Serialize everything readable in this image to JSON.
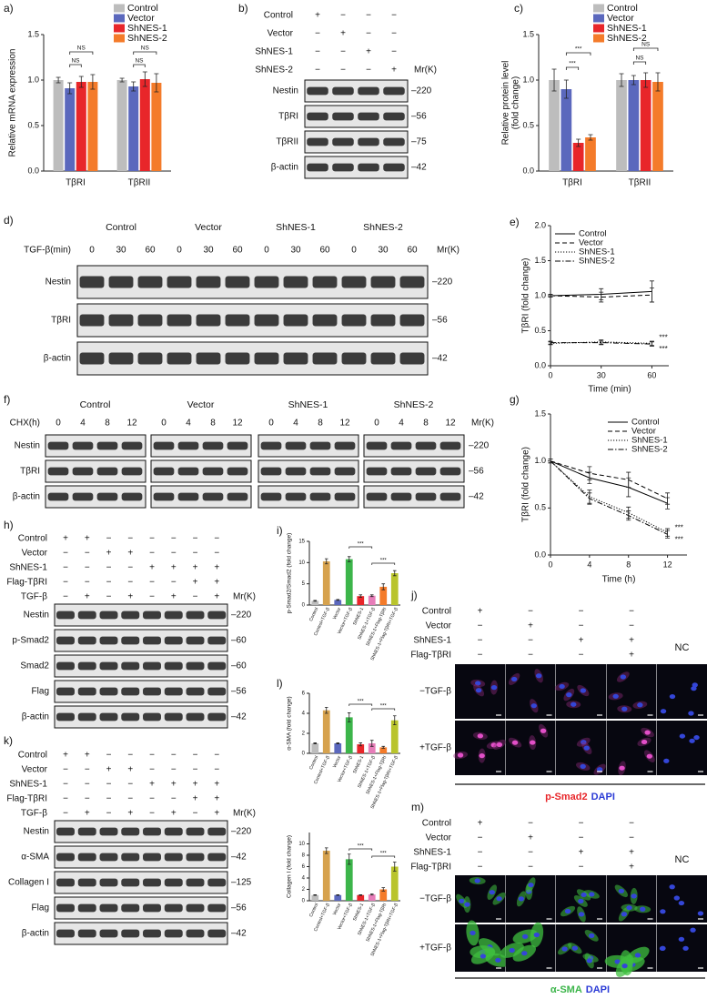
{
  "chart_data": [
    {
      "type": "bar",
      "panel": "a)",
      "ylabel": "Relative mRNA expression",
      "categories": [
        "TβRI",
        "TβRII"
      ],
      "series": [
        {
          "name": "Control",
          "color": "#bdbdbd",
          "values": [
            1.0,
            1.0
          ],
          "errors": [
            0.03,
            0.02
          ]
        },
        {
          "name": "Vector",
          "color": "#5b68bd",
          "values": [
            0.91,
            0.93
          ],
          "errors": [
            0.06,
            0.05
          ]
        },
        {
          "name": "ShNES-1",
          "color": "#e8262a",
          "values": [
            0.98,
            1.01
          ],
          "errors": [
            0.06,
            0.08
          ]
        },
        {
          "name": "ShNES-2",
          "color": "#f47b2a",
          "values": [
            0.98,
            0.97
          ],
          "errors": [
            0.08,
            0.1
          ]
        }
      ],
      "ylim": [
        0,
        1.5
      ],
      "yticks": [
        {
          "value": 0,
          "label": "0.0"
        },
        0.5,
        {
          "value": 1,
          "label": "1.0"
        },
        1.5
      ],
      "annotations": [
        "NS",
        "NS",
        "NS",
        "NS"
      ]
    },
    {
      "type": "bar",
      "panel": "c)",
      "ylabel": [
        "Relative protein level",
        "(fold change)"
      ],
      "categories": [
        "TβRI",
        "TβRII"
      ],
      "series": [
        {
          "name": "Control",
          "color": "#bdbdbd",
          "values": [
            1.0,
            1.0
          ],
          "errors": [
            0.12,
            0.07
          ]
        },
        {
          "name": "Vector",
          "color": "#5b68bd",
          "values": [
            0.9,
            1.0
          ],
          "errors": [
            0.1,
            0.05
          ]
        },
        {
          "name": "ShNES-1",
          "color": "#e8262a",
          "values": [
            0.31,
            1.0
          ],
          "errors": [
            0.04,
            0.08
          ]
        },
        {
          "name": "ShNES-2",
          "color": "#f47b2a",
          "values": [
            0.37,
            0.98
          ],
          "errors": [
            0.03,
            0.1
          ]
        }
      ],
      "ylim": [
        0,
        1.5
      ],
      "yticks": [
        {
          "value": 0,
          "label": "0.0"
        },
        0.5,
        {
          "value": 1,
          "label": "1.0"
        },
        1.5
      ],
      "annotations": [
        "***",
        "***",
        "NS",
        "NS"
      ]
    },
    {
      "type": "line",
      "panel": "e)",
      "xlabel": "Time (min)",
      "ylabel": "TβRI (fold change)",
      "x": [
        0,
        30,
        60
      ],
      "xlim": [
        0,
        70
      ],
      "xticks": [
        0,
        30,
        60
      ],
      "ylim": [
        0,
        2
      ],
      "yticks": [
        {
          "value": 0,
          "label": "0.0"
        },
        0.5,
        {
          "value": 1,
          "label": "1.0"
        },
        1.5,
        {
          "value": 2,
          "label": "2.0"
        }
      ],
      "series": [
        {
          "name": "Control",
          "color": "#000000",
          "linestyle": "solid",
          "values": [
            1.0,
            1.02,
            1.06
          ],
          "errors": [
            0.02,
            0.08,
            0.15
          ]
        },
        {
          "name": "Vector",
          "color": "#000000",
          "linestyle": "dashed",
          "values": [
            1.0,
            0.98,
            1.01
          ],
          "errors": [
            0.02,
            0.07,
            0.1
          ]
        },
        {
          "name": "ShNES-1",
          "color": "#000000",
          "linestyle": "dotted",
          "values": [
            0.32,
            0.34,
            0.32
          ],
          "errors": [
            0.02,
            0.03,
            0.03
          ]
        },
        {
          "name": "ShNES-2",
          "color": "#000000",
          "linestyle": "dashdot",
          "values": [
            0.33,
            0.33,
            0.31
          ],
          "errors": [
            0.02,
            0.03,
            0.03
          ]
        }
      ],
      "annotations": [
        "***",
        "***"
      ]
    },
    {
      "type": "line",
      "panel": "g)",
      "xlabel": "Time (h)",
      "ylabel": "TβRI (fold change)",
      "x": [
        0,
        4,
        8,
        12
      ],
      "xlim": [
        0,
        14
      ],
      "xticks": [
        0,
        4,
        8,
        12
      ],
      "ylim": [
        0,
        1.5
      ],
      "yticks": [
        {
          "value": 0,
          "label": "0.0"
        },
        0.5,
        {
          "value": 1,
          "label": "1.0"
        },
        1.5
      ],
      "series": [
        {
          "name": "Control",
          "color": "#000000",
          "linestyle": "solid",
          "values": [
            1.0,
            0.82,
            0.72,
            0.55
          ],
          "errors": [
            0.02,
            0.06,
            0.1,
            0.06
          ]
        },
        {
          "name": "Vector",
          "color": "#000000",
          "linestyle": "dashed",
          "values": [
            1.0,
            0.87,
            0.8,
            0.6
          ],
          "errors": [
            0.02,
            0.07,
            0.08,
            0.06
          ]
        },
        {
          "name": "ShNES-1",
          "color": "#000000",
          "linestyle": "dotted",
          "values": [
            1.0,
            0.62,
            0.45,
            0.24
          ],
          "errors": [
            0.02,
            0.07,
            0.06,
            0.04
          ]
        },
        {
          "name": "ShNES-2",
          "color": "#000000",
          "linestyle": "dashdot",
          "values": [
            1.0,
            0.6,
            0.42,
            0.22
          ],
          "errors": [
            0.02,
            0.06,
            0.05,
            0.04
          ]
        }
      ],
      "annotations": [
        "***",
        "***"
      ]
    },
    {
      "type": "bar",
      "panel": "i)",
      "ylabel": "p-Smad2/Smad2 (fold change)",
      "categories": [
        "Control",
        "Control+TGF-β",
        "Vector",
        "Vector+TGF-β",
        "ShNES-1",
        "ShNES-1+TGF-β",
        "ShNES-1+Flag-TβRI",
        "ShNES-1+Flag-TβRI+TGF-β"
      ],
      "values": [
        1.0,
        10.3,
        1.2,
        10.8,
        2.1,
        2.2,
        4.3,
        7.5
      ],
      "errors": [
        0.1,
        0.6,
        0.1,
        0.6,
        0.3,
        0.2,
        0.7,
        0.6
      ],
      "colors": [
        "#bdbdbd",
        "#d6a24e",
        "#5b68bd",
        "#3cb54a",
        "#e8262a",
        "#e77db9",
        "#f47b2a",
        "#b9c42c"
      ],
      "ylim": [
        0,
        15
      ],
      "yticks": [
        0,
        5,
        10,
        15
      ],
      "annotations": [
        "***",
        "***"
      ]
    },
    {
      "type": "bar",
      "panel": "l)",
      "ylabel": "α-SMA (fold change)",
      "categories": [
        "Control",
        "Control+TGF-β",
        "Vector",
        "Vector+TGF-β",
        "ShNES-1",
        "ShNES-1+TGF-β",
        "ShNES-1+Flag-TβRI",
        "ShNES-1+Flag-TβRI+TGF-β"
      ],
      "values": [
        1.0,
        4.3,
        1.0,
        3.6,
        0.9,
        1.0,
        0.6,
        3.3
      ],
      "errors": [
        0.05,
        0.3,
        0.05,
        0.45,
        0.15,
        0.3,
        0.1,
        0.45
      ],
      "colors": [
        "#bdbdbd",
        "#d6a24e",
        "#5b68bd",
        "#3cb54a",
        "#e8262a",
        "#e77db9",
        "#f47b2a",
        "#b9c42c"
      ],
      "ylim": [
        0,
        6
      ],
      "yticks": [
        0,
        2,
        4,
        6
      ],
      "annotations": [
        "***",
        "***"
      ]
    },
    {
      "type": "bar",
      "ylabel": "Collagen I (fold change)",
      "categories": [
        "Control",
        "Control+TGF-β",
        "Vector",
        "Vector+TGF-β",
        "ShNES-1",
        "ShNES-1+TGF-β",
        "ShNES-1+Flag-TβRI",
        "ShNES-1+Flag-TβRI+TGF-β"
      ],
      "values": [
        1.0,
        8.8,
        1.0,
        7.3,
        1.0,
        1.1,
        2.0,
        6.0
      ],
      "errors": [
        0.05,
        0.5,
        0.05,
        0.9,
        0.05,
        0.1,
        0.3,
        0.8
      ],
      "colors": [
        "#bdbdbd",
        "#d6a24e",
        "#5b68bd",
        "#3cb54a",
        "#e8262a",
        "#e77db9",
        "#f47b2a",
        "#b9c42c"
      ],
      "ylim": [
        0,
        12
      ],
      "yticks": [
        0,
        2,
        4,
        6,
        8,
        10
      ],
      "annotations": [
        "***",
        "***"
      ]
    }
  ],
  "blots": [
    {
      "panel": "b)",
      "mr_label": "Mr(K)",
      "conditions": [
        {
          "label": "Control",
          "marks": [
            "+",
            "−",
            "−",
            "−"
          ]
        },
        {
          "label": "Vector",
          "marks": [
            "−",
            "+",
            "−",
            "−"
          ]
        },
        {
          "label": "ShNES-1",
          "marks": [
            "−",
            "−",
            "+",
            "−"
          ]
        },
        {
          "label": "ShNES-2",
          "marks": [
            "−",
            "−",
            "−",
            "+"
          ]
        }
      ],
      "bands": [
        {
          "label": "Nestin",
          "mr": "–220"
        },
        {
          "label": "TβRI",
          "mr": "–56"
        },
        {
          "label": "TβRII",
          "mr": "–75"
        },
        {
          "label": "β-actin",
          "mr": "–42"
        }
      ]
    },
    {
      "panel": "d)",
      "mr_label": "Mr(K)",
      "groups": [
        "Control",
        "Vector",
        "ShNES-1",
        "ShNES-2"
      ],
      "row_label": "TGF-β(min)",
      "lanes": [
        "0",
        "30",
        "60",
        "0",
        "30",
        "60",
        "0",
        "30",
        "60",
        "0",
        "30",
        "60"
      ],
      "bands": [
        {
          "label": "Nestin",
          "mr": "–220"
        },
        {
          "label": "TβRI",
          "mr": "–56"
        },
        {
          "label": "β-actin",
          "mr": "–42"
        }
      ]
    },
    {
      "panel": "f)",
      "mr_label": "Mr(K)",
      "groups": [
        "Control",
        "Vector",
        "ShNES-1",
        "ShNES-2"
      ],
      "row_label": "CHX(h)",
      "lanes": [
        "0",
        "4",
        "8",
        "12",
        "0",
        "4",
        "8",
        "12",
        "0",
        "4",
        "8",
        "12",
        "0",
        "4",
        "8",
        "12"
      ],
      "bands": [
        {
          "label": "Nestin",
          "mr": "–220"
        },
        {
          "label": "TβRI",
          "mr": "–56"
        },
        {
          "label": "β-actin",
          "mr": "–42"
        }
      ]
    },
    {
      "panel": "h)",
      "mr_label": "Mr(K)",
      "conditions": [
        {
          "label": "Control",
          "marks": [
            "+",
            "+",
            "−",
            "−",
            "−",
            "−",
            "−",
            "−"
          ]
        },
        {
          "label": "Vector",
          "marks": [
            "−",
            "−",
            "+",
            "+",
            "−",
            "−",
            "−",
            "−"
          ]
        },
        {
          "label": "ShNES-1",
          "marks": [
            "−",
            "−",
            "−",
            "−",
            "+",
            "+",
            "+",
            "+"
          ]
        },
        {
          "label": "Flag-TβRI",
          "marks": [
            "−",
            "−",
            "−",
            "−",
            "−",
            "−",
            "+",
            "+"
          ]
        },
        {
          "label": "TGF-β",
          "marks": [
            "−",
            "+",
            "−",
            "+",
            "−",
            "+",
            "−",
            "+"
          ]
        }
      ],
      "bands": [
        {
          "label": "Nestin",
          "mr": "–220"
        },
        {
          "label": "p-Smad2",
          "mr": "–60"
        },
        {
          "label": "Smad2",
          "mr": "–60"
        },
        {
          "label": "Flag",
          "mr": "–56"
        },
        {
          "label": "β-actin",
          "mr": "–42"
        }
      ]
    },
    {
      "panel": "k)",
      "mr_label": "Mr(K)",
      "conditions": [
        {
          "label": "Control",
          "marks": [
            "+",
            "+",
            "−",
            "−",
            "−",
            "−",
            "−",
            "−"
          ]
        },
        {
          "label": "Vector",
          "marks": [
            "−",
            "−",
            "+",
            "+",
            "−",
            "−",
            "−",
            "−"
          ]
        },
        {
          "label": "ShNES-1",
          "marks": [
            "−",
            "−",
            "−",
            "−",
            "+",
            "+",
            "+",
            "+"
          ]
        },
        {
          "label": "Flag-TβRI",
          "marks": [
            "−",
            "−",
            "−",
            "−",
            "−",
            "−",
            "+",
            "+"
          ]
        },
        {
          "label": "TGF-β",
          "marks": [
            "−",
            "+",
            "−",
            "+",
            "−",
            "+",
            "−",
            "+"
          ]
        }
      ],
      "bands": [
        {
          "label": "Nestin",
          "mr": "–220"
        },
        {
          "label": "α-SMA",
          "mr": "–42"
        },
        {
          "label": "Collagen I",
          "mr": "–125"
        },
        {
          "label": "Flag",
          "mr": "–56"
        },
        {
          "label": "β-actin",
          "mr": "–42"
        }
      ]
    }
  ],
  "images": [
    {
      "panel": "j)",
      "nc": "NC",
      "nc_color": "#e8262a",
      "conditions": [
        {
          "label": "Control",
          "marks": [
            "+",
            "−",
            "−",
            "−"
          ]
        },
        {
          "label": "Vector",
          "marks": [
            "−",
            "+",
            "−",
            "−"
          ]
        },
        {
          "label": "ShNES-1",
          "marks": [
            "−",
            "−",
            "+",
            "+"
          ]
        },
        {
          "label": "Flag-TβRI",
          "marks": [
            "−",
            "−",
            "−",
            "+"
          ]
        }
      ],
      "row_labels": [
        "−TGF-β",
        "+TGF-β"
      ],
      "footer": [
        "p-Smad2",
        "DAPI"
      ],
      "footer_colors": [
        "#e8262a",
        "#2b3bd6"
      ]
    },
    {
      "panel": "m)",
      "nc": "NC",
      "nc_color": "#3cb54a",
      "conditions": [
        {
          "label": "Control",
          "marks": [
            "+",
            "−",
            "−",
            "−"
          ]
        },
        {
          "label": "Vector",
          "marks": [
            "−",
            "+",
            "−",
            "−"
          ]
        },
        {
          "label": "ShNES-1",
          "marks": [
            "−",
            "−",
            "+",
            "+"
          ]
        },
        {
          "label": "Flag-TβRI",
          "marks": [
            "−",
            "−",
            "−",
            "+"
          ]
        }
      ],
      "row_labels": [
        "−TGF-β",
        "+TGF-β"
      ],
      "footer": [
        "α-SMA",
        "DAPI"
      ],
      "footer_colors": [
        "#3cb54a",
        "#2b3bd6"
      ]
    }
  ]
}
